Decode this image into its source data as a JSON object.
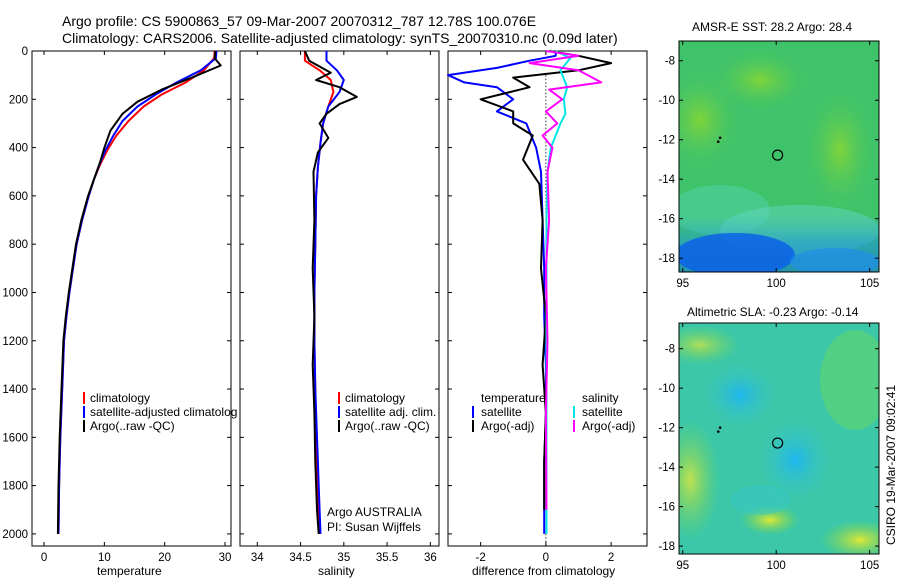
{
  "header": {
    "title_line1": "Argo profile: CS 5900863_57 09-Mar-2007 20070312_787 12.78S 100.076E",
    "title_line2": "Climatology: CARS2006. Satellite-adjusted climatology: synTS_20070310.nc (0.09d later)"
  },
  "side_label": "CSIRO 19-Mar-2007 09:02:41",
  "colors": {
    "climatology": "#ff0000",
    "satellite": "#0000ff",
    "argo": "#000000",
    "salinity_satellite": "#00e6e6",
    "salinity_argo": "#ff00ff"
  },
  "chart_data": [
    {
      "type": "line",
      "id": "temperature",
      "xlabel": "temperature",
      "ylabel": "",
      "xlim": [
        -2,
        31
      ],
      "ylim": [
        2050,
        0
      ],
      "xticks": [
        0,
        10,
        20,
        30
      ],
      "yticks": [
        0,
        200,
        400,
        600,
        800,
        1000,
        1200,
        1400,
        1600,
        1800,
        2000
      ],
      "legend": [
        "climatology",
        "satellite-adjusted climatolog",
        "Argo(..raw -QC)"
      ],
      "series": [
        {
          "name": "climatology",
          "color": "#ff0000",
          "x": [
            28.3,
            28.2,
            26.5,
            23.5,
            19.5,
            16.5,
            14.0,
            12.0,
            10.5,
            9.3,
            8.3,
            7.4,
            6.3,
            5.4,
            4.8,
            4.2,
            3.7,
            3.3,
            3.0,
            2.7,
            2.5,
            2.4
          ],
          "y": [
            0,
            30,
            80,
            130,
            180,
            230,
            290,
            350,
            410,
            470,
            530,
            600,
            700,
            800,
            900,
            1000,
            1100,
            1200,
            1400,
            1600,
            1800,
            2000
          ]
        },
        {
          "name": "satellite-adjusted climatolog",
          "color": "#0000ff",
          "x": [
            28.6,
            28.5,
            26.0,
            22.0,
            18.5,
            15.5,
            13.0,
            11.5,
            10.2,
            9.2,
            8.3,
            7.4,
            6.3,
            5.4,
            4.8,
            4.2,
            3.7,
            3.3,
            3.0,
            2.7,
            2.5,
            2.4
          ],
          "y": [
            0,
            30,
            80,
            130,
            180,
            230,
            290,
            350,
            410,
            470,
            530,
            600,
            700,
            800,
            900,
            1000,
            1100,
            1200,
            1400,
            1600,
            1800,
            2000
          ]
        },
        {
          "name": "Argo(..raw -QC)",
          "color": "#000000",
          "x": [
            28.4,
            28.3,
            29.3,
            24.5,
            19.5,
            15.5,
            13.0,
            11.0,
            10.0,
            9.3,
            8.3,
            7.3,
            6.2,
            5.3,
            4.7,
            4.1,
            3.6,
            3.2,
            2.9,
            2.6,
            2.4,
            2.3
          ],
          "y": [
            0,
            30,
            60,
            110,
            160,
            210,
            260,
            330,
            400,
            460,
            530,
            600,
            700,
            800,
            900,
            1000,
            1100,
            1200,
            1400,
            1600,
            1800,
            2000
          ]
        }
      ]
    },
    {
      "type": "line",
      "id": "salinity",
      "xlabel": "salinity",
      "ylabel": "",
      "xlim": [
        33.8,
        36.1
      ],
      "ylim": [
        2050,
        0
      ],
      "xticks": [
        34,
        34.5,
        35,
        35.5,
        36
      ],
      "legend": [
        "climatology",
        "satellite adj. clim.",
        "Argo(..raw -QC)"
      ],
      "annotations": [
        "Argo AUSTRALIA",
        "PI: Susan Wijffels"
      ],
      "series": [
        {
          "name": "climatology",
          "color": "#ff0000",
          "x": [
            34.55,
            34.55,
            34.72,
            34.85,
            34.88,
            34.82,
            34.76,
            34.73,
            34.7,
            34.68,
            34.67,
            34.66,
            34.66,
            34.67,
            34.68,
            34.69,
            34.7,
            34.71,
            34.72
          ],
          "y": [
            0,
            40,
            80,
            120,
            170,
            230,
            300,
            380,
            480,
            600,
            800,
            1000,
            1200,
            1400,
            1600,
            1700,
            1800,
            1900,
            2000
          ]
        },
        {
          "name": "satellite adj. clim.",
          "color": "#0000ff",
          "x": [
            34.8,
            34.8,
            34.92,
            35.0,
            34.95,
            34.82,
            34.76,
            34.73,
            34.7,
            34.68,
            34.67,
            34.66,
            34.66,
            34.67,
            34.69,
            34.7,
            34.71,
            34.72,
            34.73
          ],
          "y": [
            0,
            40,
            80,
            120,
            170,
            230,
            300,
            380,
            480,
            600,
            800,
            1000,
            1200,
            1400,
            1600,
            1700,
            1800,
            1900,
            2000
          ]
        },
        {
          "name": "Argo(..raw -QC)",
          "color": "#000000",
          "x": [
            34.55,
            34.6,
            34.85,
            34.68,
            34.95,
            35.15,
            34.95,
            34.8,
            34.72,
            34.82,
            34.7,
            34.65,
            34.66,
            34.64,
            34.66,
            34.64,
            34.66,
            34.67,
            34.69,
            34.71
          ],
          "y": [
            0,
            40,
            90,
            120,
            150,
            190,
            220,
            260,
            300,
            360,
            420,
            500,
            700,
            900,
            1100,
            1300,
            1500,
            1700,
            1900,
            2000
          ]
        }
      ]
    },
    {
      "type": "line",
      "id": "difference",
      "xlabel": "difference from climatology",
      "ylabel": "",
      "xlim": [
        -3,
        3.1
      ],
      "ylim": [
        2050,
        0
      ],
      "xticks": [
        -2,
        0,
        2
      ],
      "legend_headers": [
        "temperature",
        "salinity"
      ],
      "legend": [
        "satellite",
        "Argo(-adj)",
        "satellite",
        "Argo(-adj)"
      ],
      "series": [
        {
          "name": "satellite",
          "color": "#0000ff",
          "x": [
            0.3,
            0.3,
            -0.5,
            -1.5,
            -3.0,
            -2.5,
            -1.5,
            -1.0,
            -1.5,
            -0.6,
            -0.3,
            -0.15,
            -0.1,
            -0.05,
            -0.05,
            0.0,
            0.0,
            -0.05,
            -0.05,
            -0.05
          ],
          "y": [
            0,
            20,
            40,
            70,
            100,
            130,
            150,
            200,
            250,
            300,
            400,
            500,
            700,
            900,
            1100,
            1300,
            1500,
            1700,
            1900,
            2000
          ]
        },
        {
          "name": "Argo(-adj)",
          "color": "#000000",
          "x": [
            0.1,
            1.0,
            2.0,
            1.0,
            -1.0,
            -0.5,
            -2.0,
            -1.0,
            -1.0,
            -0.4,
            -0.7,
            -0.2,
            -0.1,
            -0.15,
            0.0,
            -0.1,
            0.0,
            -0.05,
            -0.05
          ],
          "y": [
            0,
            20,
            50,
            80,
            110,
            150,
            200,
            250,
            300,
            350,
            450,
            550,
            700,
            900,
            1100,
            1300,
            1500,
            1700,
            1900
          ]
        },
        {
          "name": "satellite",
          "color": "#00e6e6",
          "x": [
            0.3,
            0.75,
            0.45,
            0.65,
            0.55,
            0.6,
            0.45,
            0.3,
            0.15,
            0.05,
            0.02,
            0.02,
            0.02,
            0.02,
            0.02,
            0.02
          ],
          "y": [
            0,
            30,
            80,
            150,
            200,
            260,
            300,
            350,
            400,
            500,
            700,
            900,
            1200,
            1500,
            1800,
            2000
          ]
        },
        {
          "name": "Argo(-adj)",
          "color": "#ff00ff",
          "x": [
            0.0,
            1.0,
            -0.5,
            1.0,
            1.7,
            0.1,
            0.5,
            0.0,
            0.35,
            -0.1,
            0.2,
            0.05,
            0.1,
            0.0,
            0.05,
            0.0,
            0.02
          ],
          "y": [
            0,
            20,
            50,
            80,
            130,
            160,
            200,
            250,
            300,
            350,
            400,
            500,
            700,
            900,
            1200,
            1500,
            1900
          ]
        }
      ]
    },
    {
      "type": "heatmap",
      "id": "sst-map",
      "title": "AMSR-E SST: 28.2 Argo: 28.4",
      "xlim": [
        94.8,
        105.5
      ],
      "ylim": [
        -18.7,
        -7.0
      ],
      "xticks": [
        95,
        100,
        105
      ],
      "yticks": [
        -8,
        -10,
        -12,
        -14,
        -16,
        -18
      ],
      "marker": {
        "lon": 100.076,
        "lat": -12.78
      },
      "track_points": [
        {
          "lon": 96.9,
          "lat": -12.1
        },
        {
          "lon": 97.0,
          "lat": -11.9
        }
      ]
    },
    {
      "type": "heatmap",
      "id": "sla-map",
      "title": "Altimetric SLA: -0.23 Argo: -0.14",
      "xlim": [
        94.8,
        105.5
      ],
      "ylim": [
        -18.4,
        -6.7
      ],
      "xticks": [
        95,
        100,
        105
      ],
      "yticks": [
        -8,
        -10,
        -12,
        -14,
        -16,
        -18
      ],
      "marker": {
        "lon": 100.076,
        "lat": -12.78
      },
      "track_points": [
        {
          "lon": 96.9,
          "lat": -12.2
        },
        {
          "lon": 97.0,
          "lat": -12.0
        }
      ]
    }
  ]
}
